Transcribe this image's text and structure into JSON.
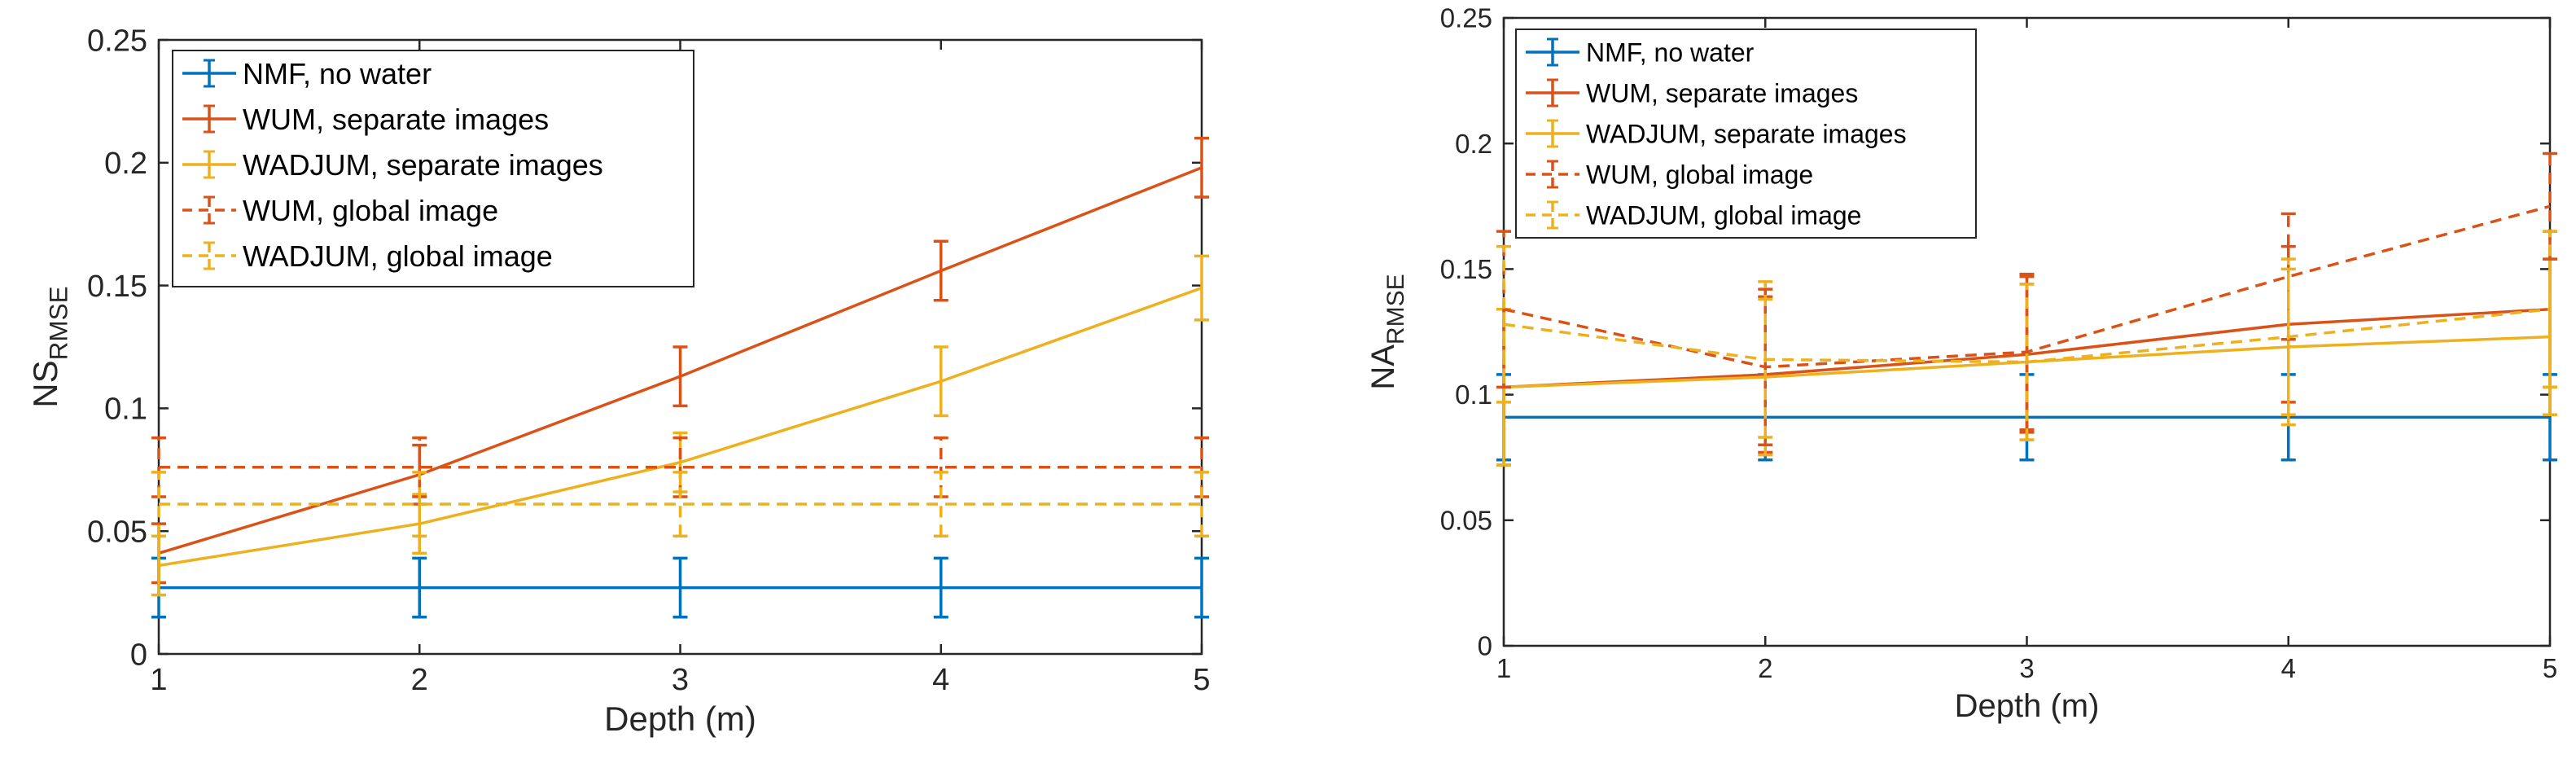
{
  "chart_data": [
    {
      "type": "line",
      "xlabel": "Depth (m)",
      "ylabel": "NS",
      "ylabel_sub": "RMSE",
      "xlim": [
        1,
        5
      ],
      "ylim": [
        0,
        0.25
      ],
      "xticks": [
        1,
        2,
        3,
        4,
        5
      ],
      "yticks": [
        0,
        0.05,
        0.1,
        0.15,
        0.2,
        0.25
      ],
      "ytick_labels": [
        "0",
        "0.05",
        "0.1",
        "0.15",
        "0.2",
        "0.25"
      ],
      "legend": "top-left",
      "grid": false,
      "x": [
        1,
        2,
        3,
        4,
        5
      ],
      "series": [
        {
          "name": "NMF, no water",
          "color": "#0072BD",
          "dash": "solid",
          "values": [
            0.027,
            0.027,
            0.027,
            0.027,
            0.027
          ],
          "err": [
            0.012,
            0.012,
            0.012,
            0.012,
            0.012
          ]
        },
        {
          "name": "WUM, separate images",
          "color": "#D95319",
          "dash": "solid",
          "values": [
            0.041,
            0.073,
            0.113,
            0.156,
            0.198
          ],
          "err": [
            0.012,
            0.012,
            0.012,
            0.012,
            0.012
          ]
        },
        {
          "name": "WADJUM, separate images",
          "color": "#EDB120",
          "dash": "solid",
          "values": [
            0.036,
            0.053,
            0.078,
            0.111,
            0.149
          ],
          "err": [
            0.012,
            0.012,
            0.012,
            0.014,
            0.013
          ]
        },
        {
          "name": "WUM, global image",
          "color": "#D95319",
          "dash": "dashed",
          "values": [
            0.076,
            0.076,
            0.076,
            0.076,
            0.076
          ],
          "err": [
            0.012,
            0.012,
            0.012,
            0.012,
            0.012
          ]
        },
        {
          "name": "WADJUM, global image",
          "color": "#EDB120",
          "dash": "dashed",
          "values": [
            0.061,
            0.061,
            0.061,
            0.061,
            0.061
          ],
          "err": [
            0.013,
            0.013,
            0.013,
            0.013,
            0.013
          ]
        }
      ]
    },
    {
      "type": "line",
      "xlabel": "Depth (m)",
      "ylabel": "NA",
      "ylabel_sub": "RMSE",
      "xlim": [
        1,
        5
      ],
      "ylim": [
        0,
        0.25
      ],
      "xticks": [
        1,
        2,
        3,
        4,
        5
      ],
      "yticks": [
        0,
        0.05,
        0.1,
        0.15,
        0.2,
        0.25
      ],
      "ytick_labels": [
        "0",
        "0.05",
        "0.1",
        "0.15",
        "0.2",
        "0.25"
      ],
      "legend": "top-left",
      "grid": false,
      "x": [
        1,
        2,
        3,
        4,
        5
      ],
      "series": [
        {
          "name": "NMF, no water",
          "color": "#0072BD",
          "dash": "solid",
          "values": [
            0.091,
            0.091,
            0.091,
            0.091,
            0.091
          ],
          "err": [
            0.017,
            0.017,
            0.017,
            0.017,
            0.017
          ]
        },
        {
          "name": "WUM, separate images",
          "color": "#D95319",
          "dash": "solid",
          "values": [
            0.103,
            0.108,
            0.116,
            0.128,
            0.134
          ],
          "err": [
            0.031,
            0.031,
            0.031,
            0.031,
            0.031
          ]
        },
        {
          "name": "WADJUM, separate images",
          "color": "#EDB120",
          "dash": "solid",
          "values": [
            0.103,
            0.107,
            0.113,
            0.119,
            0.123
          ],
          "err": [
            0.031,
            0.031,
            0.031,
            0.031,
            0.031
          ]
        },
        {
          "name": "WUM, global image",
          "color": "#D95319",
          "dash": "dashed",
          "values": [
            0.134,
            0.111,
            0.117,
            0.147,
            0.175
          ],
          "err": [
            0.031,
            0.031,
            0.031,
            0.025,
            0.021
          ]
        },
        {
          "name": "WADJUM, global image",
          "color": "#EDB120",
          "dash": "dashed",
          "values": [
            0.128,
            0.114,
            0.113,
            0.123,
            0.134
          ],
          "err": [
            0.031,
            0.031,
            0.031,
            0.031,
            0.031
          ]
        }
      ]
    }
  ]
}
